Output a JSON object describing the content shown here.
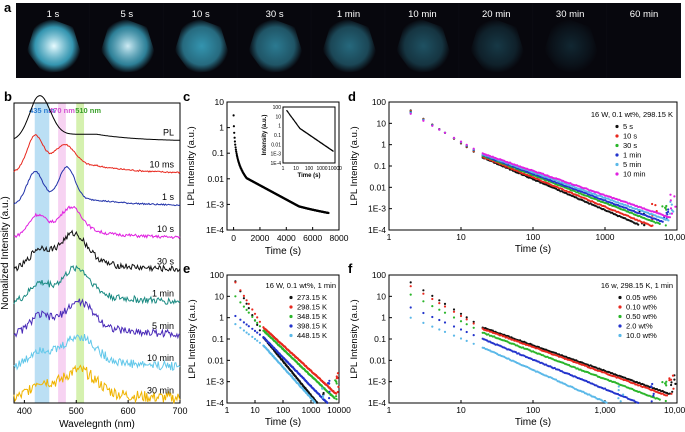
{
  "panel_letters": [
    "a",
    "b",
    "c",
    "d",
    "e",
    "f"
  ],
  "photo_strip": {
    "labels": [
      "1 s",
      "5 s",
      "10 s",
      "30 s",
      "1 min",
      "10 min",
      "20 min",
      "30 min",
      "60 min"
    ],
    "glow": [
      1.0,
      0.85,
      0.7,
      0.55,
      0.45,
      0.32,
      0.18,
      0.08,
      0.0
    ],
    "colors": {
      "bright": "#e8fbff",
      "cyan": "#3fb8d8",
      "background": "#0b0b12",
      "label": "#ffffff"
    }
  },
  "chart_data": [
    {
      "panel": "b",
      "type": "line",
      "xlabel": "Wavelegnth (nm)",
      "ylabel": "Nomalized Intensity (a.u.)",
      "xlim": [
        380,
        700
      ],
      "xticks": [
        "400",
        "500",
        "600",
        "700"
      ],
      "bands": [
        {
          "label": "435 nm",
          "x": [
            420,
            448
          ],
          "color": "#8ec9ec"
        },
        {
          "label": "470 nm",
          "x": [
            465,
            480
          ],
          "color": "#f2b6ea"
        },
        {
          "label": "510 nm",
          "x": [
            500,
            515
          ],
          "color": "#b9e87a"
        }
      ],
      "series": [
        {
          "name": "PL",
          "color": "#000000",
          "noise": 0,
          "peaks": [
            [
              430,
              1.0,
              28
            ]
          ],
          "tail": 0.18
        },
        {
          "name": "10 ms",
          "color": "#e8281e",
          "noise": 0.02,
          "peaks": [
            [
              420,
              0.8,
              22
            ],
            [
              478,
              0.55,
              28
            ]
          ],
          "tail": 0.2
        },
        {
          "name": "1 s",
          "color": "#2233aa",
          "noise": 0.02,
          "peaks": [
            [
              420,
              0.75,
              22
            ],
            [
              482,
              0.85,
              22
            ]
          ],
          "tail": 0.15
        },
        {
          "name": "10 s",
          "color": "#e020e0",
          "noise": 0.04,
          "peaks": [
            [
              425,
              0.45,
              25
            ],
            [
              490,
              0.65,
              30
            ]
          ],
          "tail": 0.15
        },
        {
          "name": "30 s",
          "color": "#111111",
          "noise": 0.08,
          "peaks": [
            [
              430,
              0.35,
              28
            ],
            [
              495,
              0.75,
              35
            ]
          ],
          "tail": 0.2
        },
        {
          "name": "1 min",
          "color": "#1a8a82",
          "noise": 0.09,
          "peaks": [
            [
              430,
              0.3,
              28
            ],
            [
              500,
              0.7,
              35
            ]
          ],
          "tail": 0.2
        },
        {
          "name": "5 min",
          "color": "#4a2bb8",
          "noise": 0.1,
          "peaks": [
            [
              430,
              0.3,
              28
            ],
            [
              505,
              0.65,
              38
            ]
          ],
          "tail": 0.2
        },
        {
          "name": "10 min",
          "color": "#63c8ea",
          "noise": 0.12,
          "peaks": [
            [
              430,
              0.25,
              28
            ],
            [
              505,
              0.6,
              40
            ]
          ],
          "tail": 0.2
        },
        {
          "name": "30 min",
          "color": "#f0b400",
          "noise": 0.15,
          "peaks": [
            [
              430,
              0.25,
              28
            ],
            [
              505,
              0.55,
              42
            ]
          ],
          "tail": 0.2
        }
      ]
    },
    {
      "panel": "c",
      "type": "scatter",
      "xlabel": "Time (s)",
      "ylabel": "LPL Intensity (a.u.)",
      "xlim": [
        -500,
        8000
      ],
      "ylim_log10": [
        -4,
        1
      ],
      "xticks": [
        0,
        2000,
        4000,
        6000,
        8000
      ],
      "yticks": [
        "1E-4",
        "1E-3",
        "0.01",
        "0.1",
        "1",
        "10"
      ],
      "decay": {
        "t_end": 7200,
        "y_start": 3,
        "y_end": 0.0002
      },
      "inset": {
        "xlabel": "Time (s)",
        "ylabel": "Intensity (a.u.)",
        "xticks": [
          "1",
          "10",
          "100",
          "1000",
          "10000"
        ],
        "yticks": [
          "1E-4",
          "1E-3",
          "0.01",
          "0.1",
          "1",
          "10",
          "100"
        ],
        "xlim_log10": [
          0,
          4
        ],
        "ylim_log10": [
          -4,
          2
        ]
      }
    },
    {
      "panel": "d",
      "type": "scatter",
      "title": "16 W, 0.1 wt%, 298.15 K",
      "xlabel": "Time (s)",
      "ylabel": "LPL Intensity (a.u.)",
      "xlim_log10": [
        0,
        4
      ],
      "ylim_log10": [
        -4,
        2
      ],
      "xticks": [
        "1",
        "10",
        "100",
        "1000",
        "10,000"
      ],
      "yticks": [
        "1E-4",
        "1E-3",
        "0.01",
        "0.1",
        "1",
        "10",
        "100"
      ],
      "series": [
        {
          "name": "5 s",
          "color": "#111111",
          "y0": 40,
          "y_knee": 0.25,
          "slope": -1.45,
          "t_end": 3000
        },
        {
          "name": "10 s",
          "color": "#e8281e",
          "y0": 38,
          "y_knee": 0.27,
          "slope": -1.38,
          "t_end": 4500
        },
        {
          "name": "30 s",
          "color": "#2ab52a",
          "y0": 35,
          "y_knee": 0.3,
          "slope": -1.3,
          "t_end": 6000
        },
        {
          "name": "1 min",
          "color": "#2233cc",
          "y0": 33,
          "y_knee": 0.32,
          "slope": -1.25,
          "t_end": 6500
        },
        {
          "name": "5 min",
          "color": "#5ab8e8",
          "y0": 30,
          "y_knee": 0.35,
          "slope": -1.2,
          "t_end": 7500
        },
        {
          "name": "10 min",
          "color": "#e020e0",
          "y0": 28,
          "y_knee": 0.38,
          "slope": -1.15,
          "t_end": 8000
        }
      ]
    },
    {
      "panel": "e",
      "type": "scatter",
      "title": "16 W, 0.1 wt%, 1 min",
      "xlabel": "Time (s)",
      "ylabel": "LPL Intensity (a.u.)",
      "xlim_log10": [
        0,
        4
      ],
      "ylim_log10": [
        -4,
        2
      ],
      "xticks": [
        "1",
        "10",
        "100",
        "1000",
        "10000"
      ],
      "yticks": [
        "1E-4",
        "1E-3",
        "0.01",
        "0.1",
        "1",
        "10",
        "100"
      ],
      "series": [
        {
          "name": "273.15 K",
          "color": "#111111",
          "y0": 50,
          "y_knee": 0.12,
          "slope": -1.6,
          "t_end": 2500
        },
        {
          "name": "298.15 K",
          "color": "#e8281e",
          "y0": 45,
          "y_knee": 0.35,
          "slope": -1.2,
          "t_end": 8000
        },
        {
          "name": "348.15 K",
          "color": "#2ab52a",
          "y0": 10,
          "y_knee": 0.25,
          "slope": -1.25,
          "t_end": 7000
        },
        {
          "name": "398.15 K",
          "color": "#2233cc",
          "y0": 1.2,
          "y_knee": 0.12,
          "slope": -1.35,
          "t_end": 4000
        },
        {
          "name": "448.15 K",
          "color": "#5ab8e8",
          "y0": 0.5,
          "y_knee": 0.05,
          "slope": -1.45,
          "t_end": 2500
        }
      ]
    },
    {
      "panel": "f",
      "type": "scatter",
      "title": "16 w, 298.15 K, 1 min",
      "xlabel": "Time (s)",
      "ylabel": "LPL Intensity (a.u.)",
      "xlim_log10": [
        0,
        4
      ],
      "ylim_log10": [
        -4,
        2
      ],
      "xticks": [
        "1",
        "10",
        "100",
        "1,000",
        "10,000"
      ],
      "yticks": [
        "1E-4",
        "1E-3",
        "0.01",
        "0.1",
        "1",
        "10",
        "100"
      ],
      "series": [
        {
          "name": "0.05 wt%",
          "color": "#111111",
          "y0": 45,
          "y_knee": 0.35,
          "slope": -1.2,
          "t_end": 8000
        },
        {
          "name": "0.10 wt%",
          "color": "#e8281e",
          "y0": 30,
          "y_knee": 0.3,
          "slope": -1.22,
          "t_end": 7500
        },
        {
          "name": "0.50 wt%",
          "color": "#2ab52a",
          "y0": 12,
          "y_knee": 0.2,
          "slope": -1.28,
          "t_end": 6000
        },
        {
          "name": "2.0 wt%",
          "color": "#2233cc",
          "y0": 3,
          "y_knee": 0.1,
          "slope": -1.38,
          "t_end": 4000
        },
        {
          "name": "10.0 wt%",
          "color": "#5ab8e8",
          "y0": 1,
          "y_knee": 0.04,
          "slope": -1.5,
          "t_end": 1500
        }
      ]
    }
  ]
}
